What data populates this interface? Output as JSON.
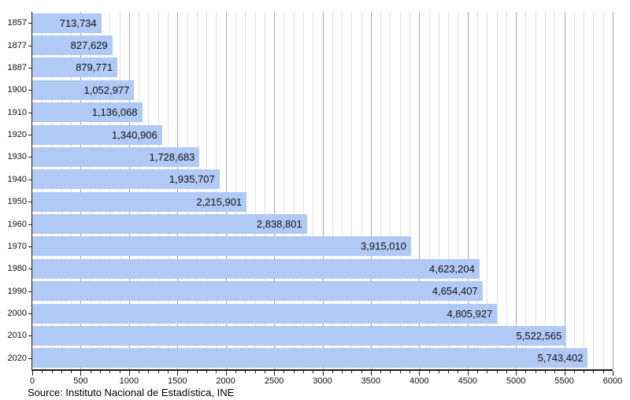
{
  "chart_data": {
    "type": "bar",
    "orientation": "horizontal",
    "title": "",
    "categories": [
      "1857",
      "1877",
      "1887",
      "1900",
      "1910",
      "1920",
      "1930",
      "1940",
      "1950",
      "1960",
      "1970",
      "1980",
      "1990",
      "2000",
      "2010",
      "2020"
    ],
    "values": [
      713734,
      827629,
      879771,
      1052977,
      1136068,
      1340906,
      1728683,
      1935707,
      2215901,
      2838801,
      3915010,
      4623204,
      4654407,
      4805927,
      5522565,
      5743402
    ],
    "value_labels": [
      "713,734",
      "827,629",
      "879,771",
      "1,052,977",
      "1,136,068",
      "1,340,906",
      "1,728,683",
      "1,935,707",
      "2,215,901",
      "2,838,801",
      "3,915,010",
      "4,623,204",
      "4,654,407",
      "4,805,927",
      "5,522,565",
      "5,743,402"
    ],
    "x_axis": {
      "min": 0,
      "max": 6000,
      "unit": "thousands",
      "major_step": 500,
      "minor_step": 100,
      "tick_labels": [
        "0",
        "500",
        "1000",
        "1500",
        "2000",
        "2500",
        "3000",
        "3500",
        "4000",
        "4500",
        "5000",
        "5500",
        "6000"
      ]
    },
    "grid": "vertical, minor every 100, major every 500",
    "legend": "none",
    "colors": {
      "bar": "#b0c9f5",
      "grid_minor": "#e2e2e2",
      "grid_major": "#a6a6a6",
      "axis": "#1c1c1c",
      "text": "#111111"
    },
    "source": "Source: Instituto Nacional de Estadística, INE"
  }
}
